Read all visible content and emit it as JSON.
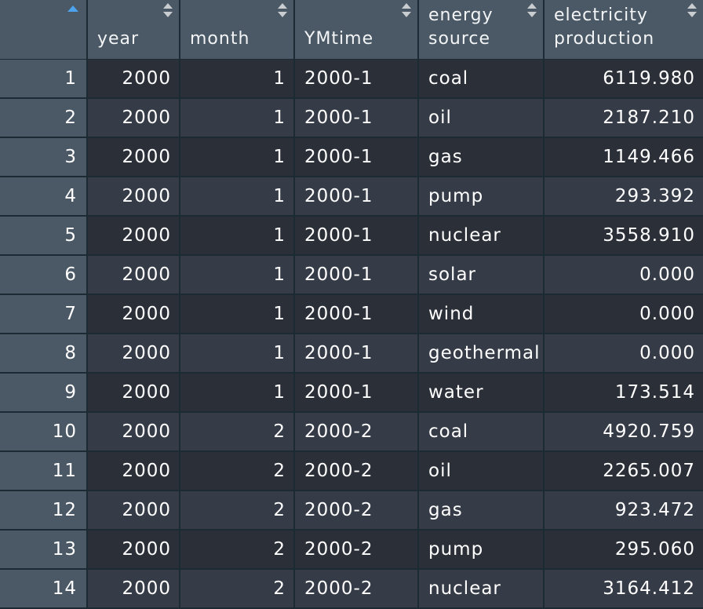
{
  "table": {
    "columns": [
      {
        "key": "rowname",
        "label": ""
      },
      {
        "key": "year",
        "label": "year"
      },
      {
        "key": "month",
        "label": "month"
      },
      {
        "key": "YMtime",
        "label": "YMtime"
      },
      {
        "key": "energy_source",
        "label": "energy\nsource"
      },
      {
        "key": "electricity_production",
        "label": "electricity\nproduction"
      }
    ],
    "rows": [
      {
        "rowname": "1",
        "year": "2000",
        "month": "1",
        "YMtime": "2000-1",
        "energy_source": "coal",
        "electricity_production": "6119.980"
      },
      {
        "rowname": "2",
        "year": "2000",
        "month": "1",
        "YMtime": "2000-1",
        "energy_source": "oil",
        "electricity_production": "2187.210"
      },
      {
        "rowname": "3",
        "year": "2000",
        "month": "1",
        "YMtime": "2000-1",
        "energy_source": "gas",
        "electricity_production": "1149.466"
      },
      {
        "rowname": "4",
        "year": "2000",
        "month": "1",
        "YMtime": "2000-1",
        "energy_source": "pump",
        "electricity_production": "293.392"
      },
      {
        "rowname": "5",
        "year": "2000",
        "month": "1",
        "YMtime": "2000-1",
        "energy_source": "nuclear",
        "electricity_production": "3558.910"
      },
      {
        "rowname": "6",
        "year": "2000",
        "month": "1",
        "YMtime": "2000-1",
        "energy_source": "solar",
        "electricity_production": "0.000"
      },
      {
        "rowname": "7",
        "year": "2000",
        "month": "1",
        "YMtime": "2000-1",
        "energy_source": "wind",
        "electricity_production": "0.000"
      },
      {
        "rowname": "8",
        "year": "2000",
        "month": "1",
        "YMtime": "2000-1",
        "energy_source": "geothermal",
        "electricity_production": "0.000"
      },
      {
        "rowname": "9",
        "year": "2000",
        "month": "1",
        "YMtime": "2000-1",
        "energy_source": "water",
        "electricity_production": "173.514"
      },
      {
        "rowname": "10",
        "year": "2000",
        "month": "2",
        "YMtime": "2000-2",
        "energy_source": "coal",
        "electricity_production": "4920.759"
      },
      {
        "rowname": "11",
        "year": "2000",
        "month": "2",
        "YMtime": "2000-2",
        "energy_source": "oil",
        "electricity_production": "2265.007"
      },
      {
        "rowname": "12",
        "year": "2000",
        "month": "2",
        "YMtime": "2000-2",
        "energy_source": "gas",
        "electricity_production": "923.472"
      },
      {
        "rowname": "13",
        "year": "2000",
        "month": "2",
        "YMtime": "2000-2",
        "energy_source": "pump",
        "electricity_production": "295.060"
      },
      {
        "rowname": "14",
        "year": "2000",
        "month": "2",
        "YMtime": "2000-2",
        "energy_source": "nuclear",
        "electricity_production": "3164.412"
      }
    ]
  },
  "colors": {
    "header_bg": "#4a5965",
    "row_odd": "#2b2f38",
    "row_even": "#363c47",
    "sort_active": "#4da3ee"
  }
}
